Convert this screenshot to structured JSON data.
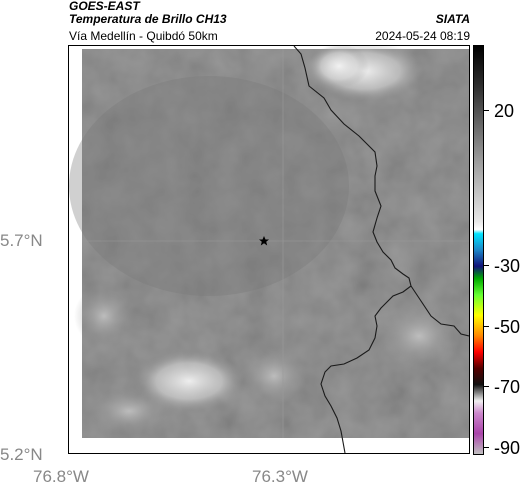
{
  "header": {
    "satellite": "GOES-EAST",
    "product": "Temperatura de Brillo CH13",
    "organization": "SIATA",
    "route": "Vía Medellín - Quibdó 50km",
    "timestamp": "2024-05-24 08:19"
  },
  "axes": {
    "lat_labels": [
      "5.7°N",
      "5.2°N"
    ],
    "lon_labels": [
      "76.8°W",
      "76.3°W"
    ]
  },
  "colorbar": {
    "labels": [
      "20",
      "-30",
      "-50",
      "-70",
      "-90"
    ]
  },
  "map": {
    "marker_icon": "star-icon",
    "background_gray": "#808080",
    "border_color": "#1a1a1a"
  }
}
